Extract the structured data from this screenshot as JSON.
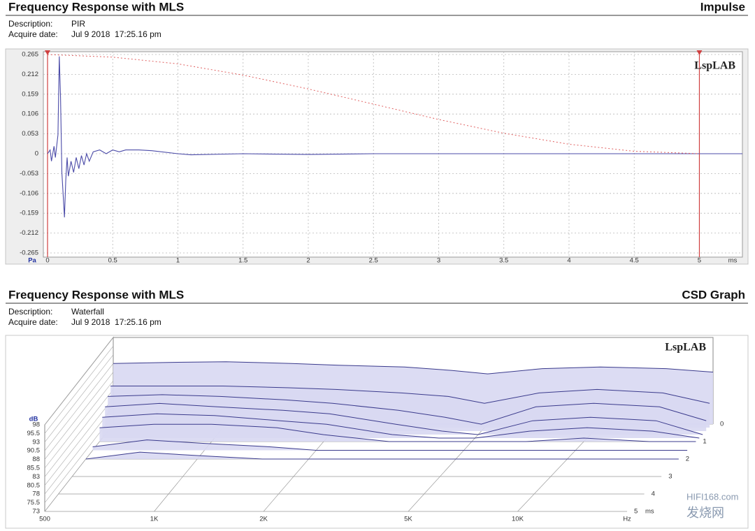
{
  "chart_data": [
    {
      "type": "line",
      "title": "Frequency Response with MLS",
      "graph_name": "Impulse",
      "description_label": "Description:",
      "description": "PIR",
      "date_label": "Acquire date:",
      "date": "Jul 9 2018  17:25.16 pm",
      "logo": "LspLAB",
      "x_label": "ms",
      "y_label": "Pa",
      "xlim": [
        0,
        5.33
      ],
      "ylim": [
        -0.265,
        0.265
      ],
      "xticks": [
        0,
        0.5,
        1,
        1.5,
        2,
        2.5,
        3,
        3.5,
        4,
        4.5,
        5
      ],
      "yticks": [
        0.265,
        0.212,
        0.159,
        0.106,
        0.053,
        0,
        -0.053,
        -0.106,
        -0.159,
        -0.212,
        -0.265
      ],
      "grid": true,
      "cursors": [
        0,
        5
      ],
      "cursor_color": "#d04040",
      "series": [
        {
          "name": "Impulse",
          "color": "#4b4ba8",
          "style": "solid",
          "x": [
            0,
            0.02,
            0.03,
            0.05,
            0.06,
            0.08,
            0.09,
            0.1,
            0.11,
            0.13,
            0.14,
            0.15,
            0.16,
            0.18,
            0.2,
            0.22,
            0.24,
            0.26,
            0.28,
            0.3,
            0.32,
            0.35,
            0.4,
            0.45,
            0.5,
            0.55,
            0.6,
            0.7,
            0.8,
            1.0,
            1.1,
            1.5,
            2,
            2.5,
            3,
            4,
            5,
            5.33
          ],
          "values": [
            0,
            0.01,
            -0.02,
            0.02,
            -0.01,
            0.05,
            0.26,
            0.15,
            -0.05,
            -0.17,
            -0.07,
            -0.01,
            -0.06,
            -0.02,
            -0.05,
            -0.01,
            -0.04,
            -0.005,
            -0.03,
            0,
            -0.02,
            0.005,
            0.01,
            0,
            0.01,
            0.005,
            0.01,
            0.01,
            0.008,
            0,
            -0.003,
            0,
            -0.002,
            0,
            0,
            0,
            0,
            0
          ]
        },
        {
          "name": "Window",
          "color": "#e06060",
          "style": "dotted",
          "x": [
            0,
            0.5,
            1,
            1.5,
            2,
            2.5,
            3,
            3.5,
            4,
            4.5,
            5
          ],
          "values": [
            0.265,
            0.258,
            0.24,
            0.21,
            0.173,
            0.1325,
            0.0915,
            0.0546,
            0.0253,
            0.0065,
            0
          ]
        }
      ]
    },
    {
      "type": "waterfall",
      "title": "Frequency Response with MLS",
      "graph_name": "CSD Graph",
      "description_label": "Description:",
      "description": "Waterfall",
      "date_label": "Acquire date:",
      "date": "Jul 9 2018  17:25.16 pm",
      "logo": "LspLAB",
      "x_label": "Hz",
      "y_label": "dB",
      "z_label": "ms",
      "xlim": [
        500,
        20000
      ],
      "log_x": true,
      "ylim": [
        73,
        98
      ],
      "zlim": [
        0,
        5
      ],
      "xticks": [
        500,
        {
          "value": 1000,
          "label": "1K"
        },
        {
          "value": 2000,
          "label": "2K"
        },
        {
          "value": 5000,
          "label": "5K"
        },
        {
          "value": 10000,
          "label": "10K"
        }
      ],
      "yticks": [
        98,
        95.5,
        93,
        90.5,
        88,
        85.5,
        83,
        80.5,
        78,
        75.5,
        73
      ],
      "zticks": [
        0,
        1,
        2,
        3,
        4,
        5
      ],
      "fill_color": "#d8d8f2",
      "line_color": "#3a3a8c",
      "x": [
        500,
        700,
        1000,
        1500,
        2000,
        3000,
        4000,
        5000,
        7000,
        10000,
        15000,
        20000
      ],
      "slices": [
        {
          "time": 0,
          "values": [
            90.5,
            90.8,
            91,
            90.5,
            90,
            89.5,
            88.5,
            87.5,
            89,
            89.5,
            89,
            88
          ]
        },
        {
          "time": 0.2,
          "values": [
            85,
            85,
            85,
            84.5,
            84,
            83,
            82,
            80,
            83,
            84,
            83,
            80
          ]
        },
        {
          "time": 0.4,
          "values": [
            83,
            83.5,
            83,
            82,
            81,
            79,
            77,
            75,
            80,
            81,
            80,
            76
          ]
        },
        {
          "time": 0.6,
          "values": [
            81,
            82,
            81,
            80,
            79,
            76,
            74,
            73,
            77,
            78,
            77,
            73
          ]
        },
        {
          "time": 0.8,
          "values": [
            79,
            80,
            79.5,
            78,
            77,
            74,
            73,
            73,
            75,
            76,
            75,
            73
          ]
        },
        {
          "time": 1.0,
          "values": [
            77,
            78,
            78,
            77,
            75,
            73,
            73,
            73,
            73,
            74,
            73,
            73
          ]
        },
        {
          "time": 1.5,
          "values": [
            74,
            76,
            75,
            74,
            73,
            73,
            73,
            73,
            73,
            73,
            73,
            73
          ]
        },
        {
          "time": 2.0,
          "values": [
            73,
            75,
            74,
            73,
            73,
            73,
            73,
            73,
            73,
            73,
            73,
            73
          ]
        }
      ]
    }
  ],
  "watermark": [
    "HIFI168.com",
    "发烧网"
  ]
}
